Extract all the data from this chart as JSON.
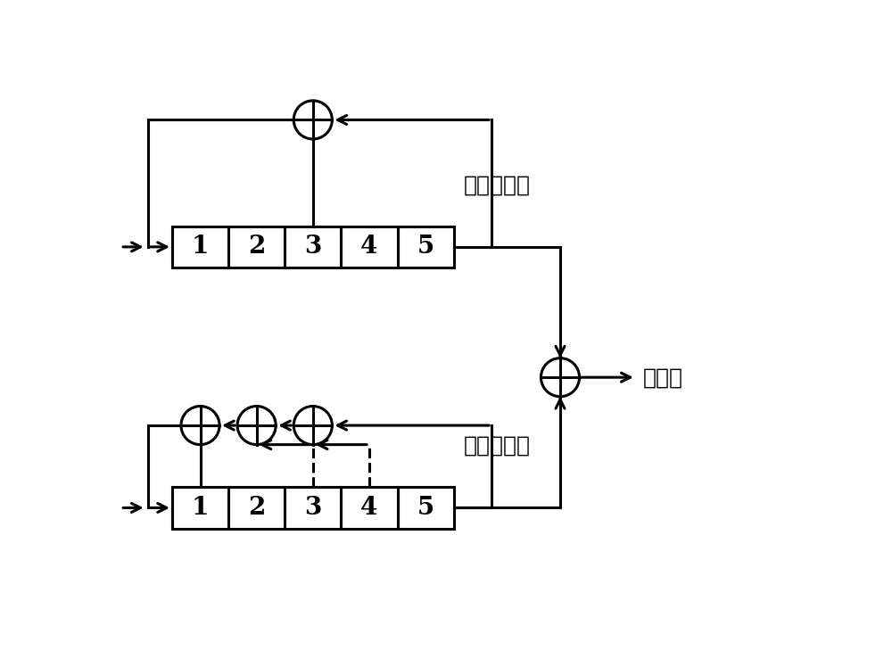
{
  "bg_color": "#ffffff",
  "line_color": "#000000",
  "label_top_register": "移位寄存器",
  "label_bottom_register": "移位寄存器",
  "label_output": "扩频码",
  "font_size_cells": 20,
  "font_size_labels": 18
}
